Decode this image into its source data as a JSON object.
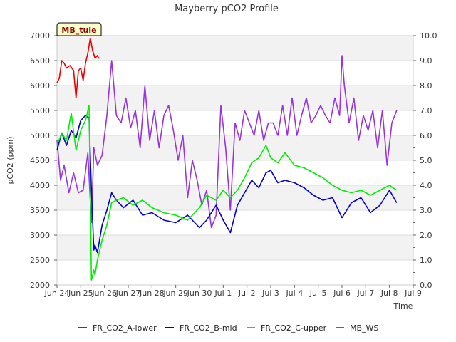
{
  "chart_data": {
    "type": "line",
    "title": "Mayberry pCO2 Profile",
    "xlabel": "Time",
    "ylabel": "pCO2 (ppm)",
    "badge": "MB_tule",
    "xlim": [
      0,
      15
    ],
    "ylim": [
      2000,
      7000
    ],
    "y2lim": [
      0.0,
      10.0
    ],
    "x_ticks": [
      {
        "v": 0,
        "label": "Jun 24"
      },
      {
        "v": 1,
        "label": "Jun 25"
      },
      {
        "v": 2,
        "label": "Jun 26"
      },
      {
        "v": 3,
        "label": "Jun 27"
      },
      {
        "v": 4,
        "label": "Jun 28"
      },
      {
        "v": 5,
        "label": "Jun 29"
      },
      {
        "v": 6,
        "label": "Jun 30"
      },
      {
        "v": 7,
        "label": "Jul 1"
      },
      {
        "v": 8,
        "label": "Jul 2"
      },
      {
        "v": 9,
        "label": "Jul 3"
      },
      {
        "v": 10,
        "label": "Jul 4"
      },
      {
        "v": 11,
        "label": "Jul 5"
      },
      {
        "v": 12,
        "label": "Jul 6"
      },
      {
        "v": 13,
        "label": "Jul 7"
      },
      {
        "v": 14,
        "label": "Jul 8"
      },
      {
        "v": 15,
        "label": "Jul 9"
      }
    ],
    "y_ticks": [
      "2000",
      "2500",
      "3000",
      "3500",
      "4000",
      "4500",
      "5000",
      "5500",
      "6000",
      "6500",
      "7000"
    ],
    "y2_ticks": [
      "0.0",
      "1.0",
      "2.0",
      "3.0",
      "4.0",
      "5.0",
      "6.0",
      "7.0",
      "8.0",
      "9.0",
      "10.0"
    ],
    "series": [
      {
        "name": "FR_CO2_A-lower",
        "color": "#ee0000",
        "axis": "left",
        "x": [
          0.0,
          0.1,
          0.2,
          0.3,
          0.4,
          0.55,
          0.7,
          0.8,
          0.9,
          1.0,
          1.1,
          1.2,
          1.3,
          1.4,
          1.5,
          1.6,
          1.7,
          1.75,
          1.8
        ],
        "y": [
          6050,
          6150,
          6500,
          6450,
          6350,
          6400,
          6300,
          5750,
          6300,
          6350,
          6100,
          6450,
          6650,
          6950,
          6700,
          6550,
          6600,
          6550,
          6550
        ]
      },
      {
        "name": "FR_CO2_B-mid",
        "color": "#0000cc",
        "axis": "left",
        "x": [
          0.0,
          0.2,
          0.4,
          0.6,
          0.8,
          1.0,
          1.2,
          1.35,
          1.45,
          1.55,
          1.6,
          1.7,
          1.9,
          2.1,
          2.3,
          2.5,
          2.8,
          3.2,
          3.6,
          4.0,
          4.5,
          5.0,
          5.5,
          6.0,
          6.3,
          6.7,
          7.0,
          7.3,
          7.6,
          7.9,
          8.2,
          8.5,
          8.8,
          9.0,
          9.3,
          9.6,
          10.0,
          10.4,
          10.8,
          11.2,
          11.6,
          12.0,
          12.4,
          12.8,
          13.2,
          13.6,
          14.0,
          14.3
        ],
        "y": [
          4700,
          5050,
          4800,
          5100,
          4950,
          5300,
          5400,
          5350,
          3900,
          2700,
          2800,
          2650,
          3200,
          3500,
          3850,
          3700,
          3550,
          3700,
          3400,
          3450,
          3300,
          3250,
          3400,
          3150,
          3300,
          3600,
          3300,
          3050,
          3600,
          3850,
          4100,
          3950,
          4250,
          4300,
          4050,
          4100,
          4050,
          3950,
          3800,
          3700,
          3750,
          3350,
          3650,
          3750,
          3450,
          3600,
          3900,
          3650
        ]
      },
      {
        "name": "FR_CO2_C-upper",
        "color": "#00ee00",
        "axis": "left",
        "x": [
          0.0,
          0.2,
          0.4,
          0.6,
          0.8,
          1.0,
          1.2,
          1.35,
          1.45,
          1.55,
          1.6,
          1.7,
          1.9,
          2.1,
          2.3,
          2.5,
          2.8,
          3.2,
          3.6,
          4.0,
          4.5,
          5.0,
          5.5,
          6.0,
          6.3,
          6.7,
          7.0,
          7.3,
          7.6,
          7.9,
          8.2,
          8.5,
          8.8,
          9.0,
          9.3,
          9.6,
          10.0,
          10.4,
          10.8,
          11.2,
          11.6,
          12.0,
          12.4,
          12.8,
          13.2,
          13.6,
          14.0,
          14.3
        ],
        "y": [
          4800,
          5050,
          4900,
          5450,
          4700,
          5100,
          5300,
          5600,
          2100,
          2300,
          2200,
          2500,
          2900,
          3200,
          3650,
          3700,
          3750,
          3600,
          3700,
          3550,
          3450,
          3400,
          3300,
          3550,
          3800,
          3700,
          3900,
          3750,
          3900,
          4150,
          4450,
          4550,
          4800,
          4550,
          4450,
          4650,
          4400,
          4350,
          4250,
          4150,
          4000,
          3900,
          3850,
          3900,
          3800,
          3900,
          4000,
          3900
        ]
      },
      {
        "name": "MB_WS",
        "color": "#9933dd",
        "axis": "right",
        "x": [
          0.0,
          0.15,
          0.3,
          0.5,
          0.7,
          0.9,
          1.1,
          1.3,
          1.45,
          1.55,
          1.7,
          1.9,
          2.1,
          2.3,
          2.5,
          2.7,
          2.9,
          3.1,
          3.3,
          3.5,
          3.7,
          3.9,
          4.1,
          4.3,
          4.5,
          4.7,
          4.9,
          5.1,
          5.3,
          5.5,
          5.7,
          5.9,
          6.1,
          6.3,
          6.5,
          6.7,
          6.9,
          7.1,
          7.3,
          7.5,
          7.7,
          7.9,
          8.1,
          8.3,
          8.5,
          8.7,
          8.9,
          9.1,
          9.3,
          9.5,
          9.7,
          9.9,
          10.1,
          10.3,
          10.5,
          10.7,
          10.9,
          11.1,
          11.3,
          11.5,
          11.7,
          11.9,
          12.0,
          12.1,
          12.3,
          12.5,
          12.7,
          12.9,
          13.1,
          13.3,
          13.5,
          13.7,
          13.9,
          14.1,
          14.3
        ],
        "y": [
          5.8,
          4.2,
          4.8,
          3.7,
          4.5,
          3.7,
          3.8,
          5.3,
          2.5,
          5.5,
          4.8,
          5.2,
          6.8,
          9.0,
          6.8,
          6.5,
          7.5,
          6.3,
          7.0,
          5.5,
          8.0,
          5.8,
          7.0,
          5.5,
          6.8,
          7.2,
          6.2,
          5.0,
          6.0,
          3.5,
          5.0,
          4.2,
          3.2,
          3.8,
          2.3,
          2.8,
          7.2,
          5.5,
          3.0,
          6.5,
          5.8,
          7.0,
          6.5,
          6.0,
          7.0,
          5.8,
          6.5,
          6.5,
          6.0,
          7.2,
          6.0,
          7.5,
          6.0,
          6.8,
          7.5,
          6.5,
          6.8,
          7.2,
          6.8,
          6.5,
          7.5,
          6.8,
          9.2,
          8.0,
          6.5,
          7.5,
          5.8,
          6.8,
          6.2,
          7.0,
          5.5,
          7.0,
          4.8,
          6.5,
          7.0
        ]
      }
    ]
  }
}
